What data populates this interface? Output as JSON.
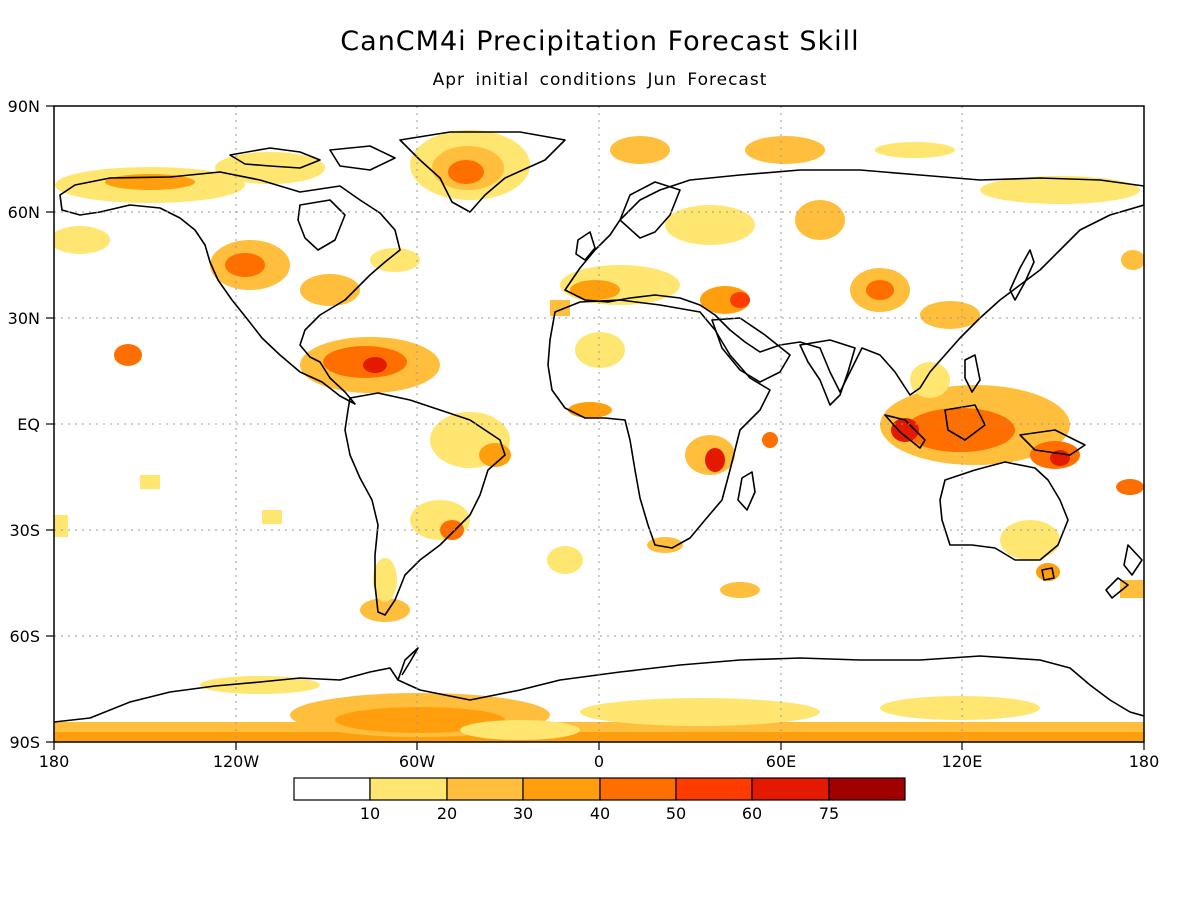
{
  "title": "CanCM4i Precipitation Forecast Skill",
  "subtitle": "Apr initial conditions   Jun Forecast",
  "axes": {
    "lat_labels": [
      "90N",
      "60N",
      "30N",
      "EQ",
      "30S",
      "60S",
      "90S"
    ],
    "lon_labels": [
      "180",
      "120W",
      "60W",
      "0",
      "60E",
      "120E",
      "180"
    ],
    "grid": "dotted"
  },
  "colorbar": {
    "tick_labels": [
      "10",
      "20",
      "30",
      "40",
      "50",
      "60",
      "75"
    ],
    "colors": [
      "#ffffff",
      "#ffe670",
      "#ffbe3c",
      "#ff9f0d",
      "#ff6f00",
      "#ff3c00",
      "#e41a00",
      "#a00000"
    ]
  },
  "colors": {
    "coastline": "#000000",
    "grid": "#9a9a9a",
    "background": "#ffffff"
  }
}
